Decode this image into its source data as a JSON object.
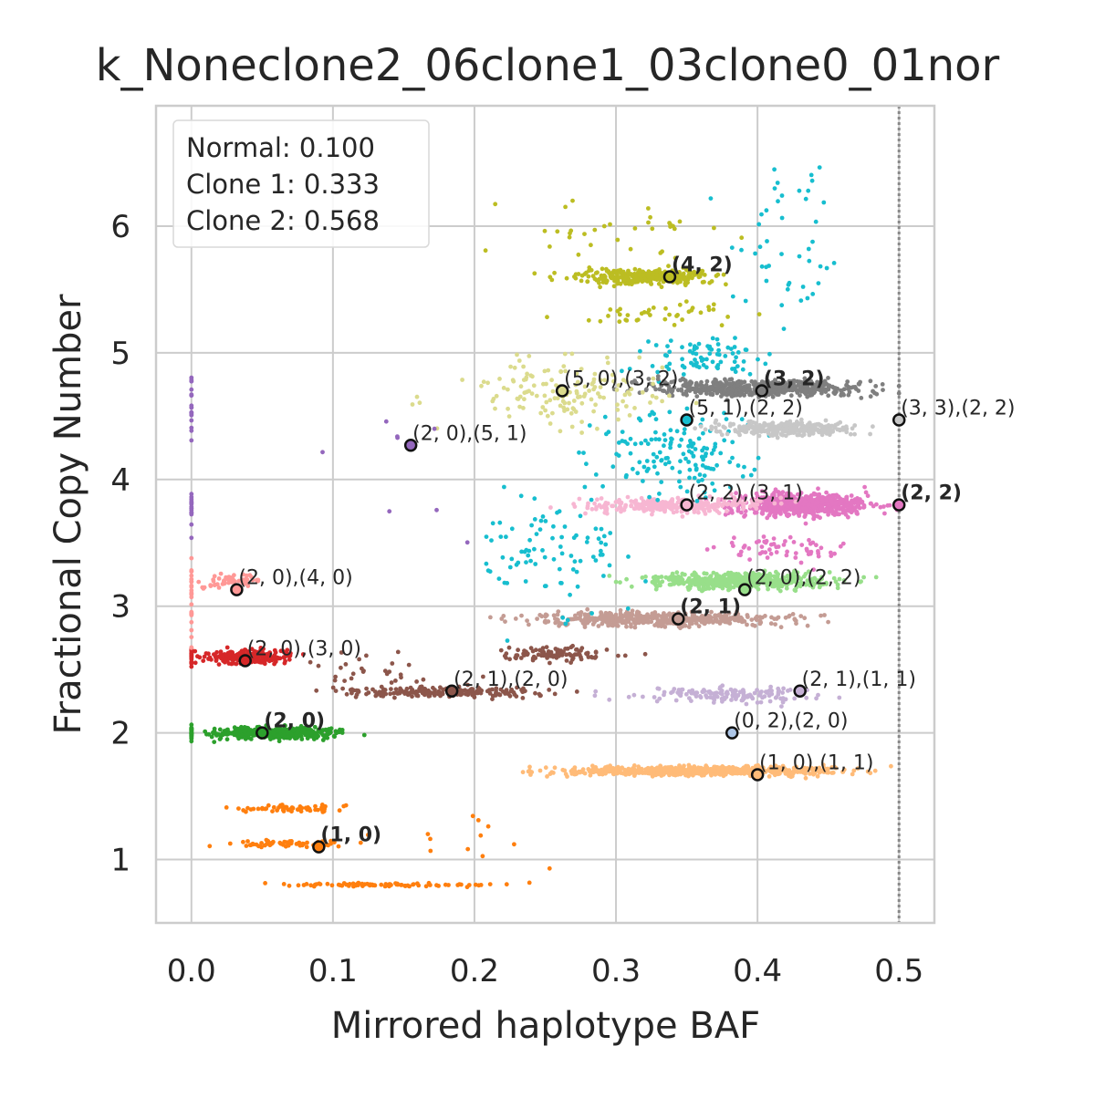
{
  "chart_data": {
    "type": "scatter",
    "title": "k_Noneclone2_06clone1_03clone0_01nor",
    "xlabel": "Mirrored haplotype BAF",
    "ylabel": "Fractional Copy Number",
    "xlim": [
      -0.025,
      0.525
    ],
    "ylim": [
      0.5,
      6.95
    ],
    "xticks": [
      "0.0",
      "0.1",
      "0.2",
      "0.3",
      "0.4",
      "0.5"
    ],
    "xtick_values": [
      0.0,
      0.1,
      0.2,
      0.3,
      0.4,
      0.5
    ],
    "yticks": [
      "1",
      "2",
      "3",
      "4",
      "5",
      "6"
    ],
    "ytick_values": [
      1,
      2,
      3,
      4,
      5,
      6
    ],
    "grid": true,
    "reference_line": {
      "x": 0.5,
      "style": "dotted",
      "color": "#888888"
    },
    "legend": {
      "placement": "top-left",
      "lines": [
        "Normal: 0.100",
        "Clone 1: 0.333",
        "Clone 2: 0.568"
      ]
    },
    "series": [
      {
        "color": "#ff7f0e",
        "clusters": [
          {
            "cx": 0.07,
            "cy": 1.12,
            "sx": 0.035,
            "sy": 0.02,
            "n": 60
          },
          {
            "cx": 0.08,
            "cy": 1.4,
            "sx": 0.03,
            "sy": 0.02,
            "n": 60
          },
          {
            "cx": 0.14,
            "cy": 0.8,
            "sx": 0.06,
            "sy": 0.01,
            "n": 80
          },
          {
            "cx": 0.2,
            "cy": 1.2,
            "sx": 0.04,
            "sy": 0.2,
            "n": 12
          }
        ]
      },
      {
        "color": "#2ca02c",
        "clusters": [
          {
            "cx": 0.06,
            "cy": 2.0,
            "sx": 0.03,
            "sy": 0.03,
            "n": 500
          },
          {
            "cx": 0.0,
            "cy": 2.0,
            "sx": 0.0,
            "sy": 0.05,
            "n": 30
          }
        ]
      },
      {
        "color": "#d62728",
        "clusters": [
          {
            "cx": 0.04,
            "cy": 2.6,
            "sx": 0.02,
            "sy": 0.035,
            "n": 250
          },
          {
            "cx": 0.0,
            "cy": 2.6,
            "sx": 0.0,
            "sy": 0.05,
            "n": 20
          }
        ]
      },
      {
        "color": "#ff9896",
        "clusters": [
          {
            "cx": 0.03,
            "cy": 3.2,
            "sx": 0.015,
            "sy": 0.04,
            "n": 60
          },
          {
            "cx": 0.0,
            "cy": 3.1,
            "sx": 0.0,
            "sy": 0.25,
            "n": 25
          }
        ]
      },
      {
        "color": "#8c564b",
        "clusters": [
          {
            "cx": 0.18,
            "cy": 2.32,
            "sx": 0.05,
            "sy": 0.03,
            "n": 200
          },
          {
            "cx": 0.26,
            "cy": 2.62,
            "sx": 0.03,
            "sy": 0.04,
            "n": 100
          },
          {
            "cx": 0.13,
            "cy": 2.5,
            "sx": 0.04,
            "sy": 0.1,
            "n": 30
          }
        ]
      },
      {
        "color": "#c49c94",
        "clusters": [
          {
            "cx": 0.33,
            "cy": 2.9,
            "sx": 0.06,
            "sy": 0.04,
            "n": 450
          }
        ]
      },
      {
        "color": "#98df8a",
        "clusters": [
          {
            "cx": 0.39,
            "cy": 3.2,
            "sx": 0.045,
            "sy": 0.045,
            "n": 550
          }
        ]
      },
      {
        "color": "#e377c2",
        "clusters": [
          {
            "cx": 0.43,
            "cy": 3.8,
            "sx": 0.035,
            "sy": 0.06,
            "n": 650
          },
          {
            "cx": 0.42,
            "cy": 3.45,
            "sx": 0.03,
            "sy": 0.08,
            "n": 60
          }
        ]
      },
      {
        "color": "#f7b6d2",
        "clusters": [
          {
            "cx": 0.34,
            "cy": 3.8,
            "sx": 0.04,
            "sy": 0.04,
            "n": 300
          }
        ]
      },
      {
        "color": "#17becf",
        "clusters": [
          {
            "cx": 0.25,
            "cy": 3.45,
            "sx": 0.04,
            "sy": 0.3,
            "n": 90
          },
          {
            "cx": 0.34,
            "cy": 4.2,
            "sx": 0.04,
            "sy": 0.25,
            "n": 150
          },
          {
            "cx": 0.36,
            "cy": 4.95,
            "sx": 0.03,
            "sy": 0.1,
            "n": 80
          },
          {
            "cx": 0.42,
            "cy": 5.7,
            "sx": 0.03,
            "sy": 0.4,
            "n": 35
          },
          {
            "cx": 0.43,
            "cy": 6.3,
            "sx": 0.03,
            "sy": 0.2,
            "n": 12
          }
        ]
      },
      {
        "color": "#7f7f7f",
        "clusters": [
          {
            "cx": 0.4,
            "cy": 4.72,
            "sx": 0.05,
            "sy": 0.045,
            "n": 550
          }
        ]
      },
      {
        "color": "#c7c7c7",
        "clusters": [
          {
            "cx": 0.42,
            "cy": 4.4,
            "sx": 0.035,
            "sy": 0.04,
            "n": 300
          }
        ]
      },
      {
        "color": "#dbdb8d",
        "clusters": [
          {
            "cx": 0.27,
            "cy": 4.7,
            "sx": 0.05,
            "sy": 0.2,
            "n": 150
          }
        ]
      },
      {
        "color": "#bcbd22",
        "clusters": [
          {
            "cx": 0.32,
            "cy": 5.6,
            "sx": 0.035,
            "sy": 0.04,
            "n": 300
          },
          {
            "cx": 0.3,
            "cy": 5.9,
            "sx": 0.05,
            "sy": 0.25,
            "n": 35
          },
          {
            "cx": 0.33,
            "cy": 5.3,
            "sx": 0.04,
            "sy": 0.06,
            "n": 40
          }
        ]
      },
      {
        "color": "#c5b0d5",
        "clusters": [
          {
            "cx": 0.38,
            "cy": 2.3,
            "sx": 0.045,
            "sy": 0.04,
            "n": 150
          }
        ]
      },
      {
        "color": "#ffbb78",
        "clusters": [
          {
            "cx": 0.36,
            "cy": 1.7,
            "sx": 0.07,
            "sy": 0.025,
            "n": 700
          }
        ]
      },
      {
        "color": "#9467bd",
        "clusters": [
          {
            "cx": 0.0,
            "cy": 4.6,
            "sx": 0.0,
            "sy": 0.15,
            "n": 20
          },
          {
            "cx": 0.0,
            "cy": 3.75,
            "sx": 0.0,
            "sy": 0.1,
            "n": 18
          },
          {
            "cx": 0.15,
            "cy": 4.1,
            "sx": 0.05,
            "sy": 0.4,
            "n": 8
          }
        ]
      }
    ],
    "annotations": [
      {
        "x": 0.09,
        "y": 1.1,
        "label": "(1, 0)",
        "bold": true,
        "fill": "#ff7f0e"
      },
      {
        "x": 0.05,
        "y": 2.0,
        "label": "(2, 0)",
        "bold": true,
        "fill": "#2ca02c"
      },
      {
        "x": 0.038,
        "y": 2.57,
        "label": "(2, 0),(3, 0)",
        "bold": false,
        "fill": "#d62728"
      },
      {
        "x": 0.032,
        "y": 3.13,
        "label": "(2, 0),(4, 0)",
        "bold": false,
        "fill": "#ff9896"
      },
      {
        "x": 0.184,
        "y": 2.33,
        "label": "(2, 1),(2, 0)",
        "bold": false,
        "fill": "#8c564b"
      },
      {
        "x": 0.344,
        "y": 2.9,
        "label": "(2, 1)",
        "bold": true,
        "fill": "#c49c94"
      },
      {
        "x": 0.391,
        "y": 3.13,
        "label": "(2, 0),(2, 2)",
        "bold": false,
        "fill": "#98df8a"
      },
      {
        "x": 0.35,
        "y": 3.8,
        "label": "(2, 2),(3, 1)",
        "bold": false,
        "fill": "#f7b6d2"
      },
      {
        "x": 0.5,
        "y": 3.8,
        "label": "(2, 2)",
        "bold": true,
        "fill": "#e377c2"
      },
      {
        "x": 0.155,
        "y": 4.27,
        "label": "(2, 0),(5, 1)",
        "bold": false,
        "fill": "#9467bd"
      },
      {
        "x": 0.35,
        "y": 4.47,
        "label": "(5, 1),(2, 2)",
        "bold": false,
        "fill": "#17becf"
      },
      {
        "x": 0.262,
        "y": 4.7,
        "label": "(5, 0),(3, 2)",
        "bold": false,
        "fill": "#dbdb8d"
      },
      {
        "x": 0.403,
        "y": 4.7,
        "label": "(3, 2)",
        "bold": true,
        "fill": "#7f7f7f"
      },
      {
        "x": 0.5,
        "y": 4.47,
        "label": "(3, 3),(2, 2)",
        "bold": false,
        "fill": "#c7c7c7"
      },
      {
        "x": 0.338,
        "y": 5.6,
        "label": "(4, 2)",
        "bold": true,
        "fill": "#bcbd22"
      },
      {
        "x": 0.43,
        "y": 2.33,
        "label": "(2, 1),(1, 1)",
        "bold": false,
        "fill": "#c5b0d5"
      },
      {
        "x": 0.382,
        "y": 2.0,
        "label": "(0, 2),(2, 0)",
        "bold": false,
        "fill": "#aec7e8"
      },
      {
        "x": 0.4,
        "y": 1.67,
        "label": "(1, 0),(1, 1)",
        "bold": false,
        "fill": "#ffbb78"
      }
    ]
  }
}
